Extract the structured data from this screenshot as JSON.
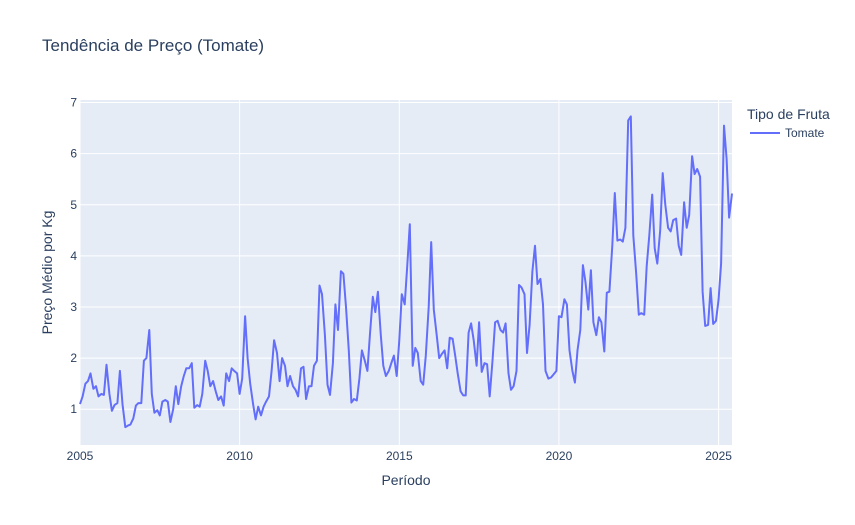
{
  "chart_data": {
    "type": "line",
    "title": "Tendência de Preço (Tomate)",
    "xlabel": "Período",
    "ylabel": "Preço Médio por Kg",
    "legend_title": "Tipo de Fruta",
    "legend_position": "top-right",
    "grid": true,
    "xlim": [
      2005,
      2025.42
    ],
    "ylim": [
      0.3,
      7.05
    ],
    "x_ticks": [
      2005,
      2010,
      2015,
      2020,
      2025
    ],
    "y_ticks": [
      1,
      2,
      3,
      4,
      5,
      6,
      7
    ],
    "series": [
      {
        "name": "Tomate",
        "color": "#636efa",
        "points": [
          [
            2005.0,
            1.1
          ],
          [
            2005.08,
            1.25
          ],
          [
            2005.17,
            1.5
          ],
          [
            2005.25,
            1.55
          ],
          [
            2005.33,
            1.7
          ],
          [
            2005.42,
            1.4
          ],
          [
            2005.5,
            1.45
          ],
          [
            2005.58,
            1.25
          ],
          [
            2005.67,
            1.3
          ],
          [
            2005.75,
            1.28
          ],
          [
            2005.83,
            1.87
          ],
          [
            2005.92,
            1.3
          ],
          [
            2006.0,
            0.97
          ],
          [
            2006.08,
            1.08
          ],
          [
            2006.17,
            1.12
          ],
          [
            2006.25,
            1.75
          ],
          [
            2006.33,
            1.1
          ],
          [
            2006.42,
            0.65
          ],
          [
            2006.5,
            0.68
          ],
          [
            2006.58,
            0.7
          ],
          [
            2006.67,
            0.82
          ],
          [
            2006.75,
            1.07
          ],
          [
            2006.83,
            1.12
          ],
          [
            2006.92,
            1.12
          ],
          [
            2007.0,
            1.95
          ],
          [
            2007.08,
            2.0
          ],
          [
            2007.17,
            2.55
          ],
          [
            2007.25,
            1.3
          ],
          [
            2007.33,
            0.93
          ],
          [
            2007.42,
            0.98
          ],
          [
            2007.5,
            0.88
          ],
          [
            2007.58,
            1.15
          ],
          [
            2007.67,
            1.18
          ],
          [
            2007.75,
            1.15
          ],
          [
            2007.83,
            0.75
          ],
          [
            2007.92,
            1.0
          ],
          [
            2008.0,
            1.45
          ],
          [
            2008.08,
            1.1
          ],
          [
            2008.17,
            1.45
          ],
          [
            2008.25,
            1.65
          ],
          [
            2008.33,
            1.8
          ],
          [
            2008.42,
            1.8
          ],
          [
            2008.5,
            1.9
          ],
          [
            2008.58,
            1.03
          ],
          [
            2008.67,
            1.08
          ],
          [
            2008.75,
            1.05
          ],
          [
            2008.83,
            1.3
          ],
          [
            2008.92,
            1.95
          ],
          [
            2009.0,
            1.75
          ],
          [
            2009.08,
            1.45
          ],
          [
            2009.17,
            1.55
          ],
          [
            2009.25,
            1.35
          ],
          [
            2009.33,
            1.18
          ],
          [
            2009.42,
            1.25
          ],
          [
            2009.5,
            1.07
          ],
          [
            2009.58,
            1.7
          ],
          [
            2009.67,
            1.55
          ],
          [
            2009.75,
            1.8
          ],
          [
            2009.83,
            1.75
          ],
          [
            2009.92,
            1.7
          ],
          [
            2010.0,
            1.3
          ],
          [
            2010.08,
            1.6
          ],
          [
            2010.17,
            2.82
          ],
          [
            2010.25,
            2.0
          ],
          [
            2010.33,
            1.5
          ],
          [
            2010.42,
            1.1
          ],
          [
            2010.5,
            0.8
          ],
          [
            2010.58,
            1.05
          ],
          [
            2010.67,
            0.88
          ],
          [
            2010.75,
            1.05
          ],
          [
            2010.83,
            1.15
          ],
          [
            2010.92,
            1.25
          ],
          [
            2011.0,
            1.75
          ],
          [
            2011.08,
            2.35
          ],
          [
            2011.17,
            2.1
          ],
          [
            2011.25,
            1.55
          ],
          [
            2011.33,
            2.0
          ],
          [
            2011.42,
            1.85
          ],
          [
            2011.5,
            1.45
          ],
          [
            2011.58,
            1.65
          ],
          [
            2011.67,
            1.45
          ],
          [
            2011.75,
            1.38
          ],
          [
            2011.83,
            1.25
          ],
          [
            2011.92,
            1.8
          ],
          [
            2012.0,
            1.83
          ],
          [
            2012.08,
            1.2
          ],
          [
            2012.17,
            1.45
          ],
          [
            2012.25,
            1.45
          ],
          [
            2012.33,
            1.85
          ],
          [
            2012.42,
            1.95
          ],
          [
            2012.5,
            3.42
          ],
          [
            2012.58,
            3.25
          ],
          [
            2012.67,
            2.45
          ],
          [
            2012.75,
            1.48
          ],
          [
            2012.83,
            1.28
          ],
          [
            2012.92,
            1.9
          ],
          [
            2013.0,
            3.05
          ],
          [
            2013.08,
            2.55
          ],
          [
            2013.17,
            3.7
          ],
          [
            2013.25,
            3.65
          ],
          [
            2013.33,
            3.0
          ],
          [
            2013.42,
            2.15
          ],
          [
            2013.5,
            1.13
          ],
          [
            2013.58,
            1.2
          ],
          [
            2013.67,
            1.17
          ],
          [
            2013.75,
            1.6
          ],
          [
            2013.83,
            2.15
          ],
          [
            2013.92,
            1.95
          ],
          [
            2014.0,
            1.75
          ],
          [
            2014.08,
            2.45
          ],
          [
            2014.17,
            3.2
          ],
          [
            2014.25,
            2.9
          ],
          [
            2014.33,
            3.3
          ],
          [
            2014.42,
            2.45
          ],
          [
            2014.5,
            1.85
          ],
          [
            2014.58,
            1.65
          ],
          [
            2014.67,
            1.75
          ],
          [
            2014.75,
            1.9
          ],
          [
            2014.83,
            2.05
          ],
          [
            2014.92,
            1.65
          ],
          [
            2015.0,
            2.35
          ],
          [
            2015.08,
            3.25
          ],
          [
            2015.17,
            3.05
          ],
          [
            2015.25,
            3.82
          ],
          [
            2015.33,
            4.62
          ],
          [
            2015.42,
            1.85
          ],
          [
            2015.5,
            2.2
          ],
          [
            2015.58,
            2.1
          ],
          [
            2015.67,
            1.55
          ],
          [
            2015.75,
            1.48
          ],
          [
            2015.83,
            2.05
          ],
          [
            2015.92,
            3.0
          ],
          [
            2016.0,
            4.27
          ],
          [
            2016.08,
            2.95
          ],
          [
            2016.17,
            2.45
          ],
          [
            2016.25,
            2.0
          ],
          [
            2016.33,
            2.08
          ],
          [
            2016.42,
            2.15
          ],
          [
            2016.5,
            1.8
          ],
          [
            2016.58,
            2.4
          ],
          [
            2016.67,
            2.38
          ],
          [
            2016.75,
            2.05
          ],
          [
            2016.83,
            1.7
          ],
          [
            2016.92,
            1.35
          ],
          [
            2017.0,
            1.27
          ],
          [
            2017.08,
            1.27
          ],
          [
            2017.17,
            2.5
          ],
          [
            2017.25,
            2.68
          ],
          [
            2017.33,
            2.35
          ],
          [
            2017.42,
            1.85
          ],
          [
            2017.5,
            2.7
          ],
          [
            2017.58,
            1.73
          ],
          [
            2017.67,
            1.9
          ],
          [
            2017.75,
            1.88
          ],
          [
            2017.83,
            1.25
          ],
          [
            2017.92,
            1.95
          ],
          [
            2018.0,
            2.7
          ],
          [
            2018.08,
            2.73
          ],
          [
            2018.17,
            2.55
          ],
          [
            2018.25,
            2.5
          ],
          [
            2018.33,
            2.68
          ],
          [
            2018.42,
            1.7
          ],
          [
            2018.5,
            1.38
          ],
          [
            2018.58,
            1.45
          ],
          [
            2018.67,
            1.75
          ],
          [
            2018.75,
            3.43
          ],
          [
            2018.83,
            3.38
          ],
          [
            2018.92,
            3.25
          ],
          [
            2019.0,
            2.1
          ],
          [
            2019.08,
            2.65
          ],
          [
            2019.17,
            3.7
          ],
          [
            2019.25,
            4.2
          ],
          [
            2019.33,
            3.45
          ],
          [
            2019.42,
            3.55
          ],
          [
            2019.5,
            3.05
          ],
          [
            2019.58,
            1.75
          ],
          [
            2019.67,
            1.6
          ],
          [
            2019.75,
            1.62
          ],
          [
            2019.83,
            1.68
          ],
          [
            2019.92,
            1.75
          ],
          [
            2020.0,
            2.82
          ],
          [
            2020.08,
            2.8
          ],
          [
            2020.17,
            3.15
          ],
          [
            2020.25,
            3.05
          ],
          [
            2020.33,
            2.15
          ],
          [
            2020.42,
            1.75
          ],
          [
            2020.5,
            1.52
          ],
          [
            2020.58,
            2.15
          ],
          [
            2020.67,
            2.55
          ],
          [
            2020.75,
            3.82
          ],
          [
            2020.83,
            3.5
          ],
          [
            2020.92,
            2.95
          ],
          [
            2021.0,
            3.72
          ],
          [
            2021.08,
            2.7
          ],
          [
            2021.17,
            2.45
          ],
          [
            2021.25,
            2.8
          ],
          [
            2021.33,
            2.7
          ],
          [
            2021.42,
            2.13
          ],
          [
            2021.5,
            3.28
          ],
          [
            2021.58,
            3.3
          ],
          [
            2021.67,
            4.2
          ],
          [
            2021.75,
            5.23
          ],
          [
            2021.83,
            4.3
          ],
          [
            2021.92,
            4.32
          ],
          [
            2022.0,
            4.28
          ],
          [
            2022.08,
            4.55
          ],
          [
            2022.17,
            6.65
          ],
          [
            2022.25,
            6.73
          ],
          [
            2022.33,
            4.4
          ],
          [
            2022.42,
            3.65
          ],
          [
            2022.5,
            2.85
          ],
          [
            2022.58,
            2.88
          ],
          [
            2022.67,
            2.85
          ],
          [
            2022.75,
            3.8
          ],
          [
            2022.83,
            4.4
          ],
          [
            2022.92,
            5.2
          ],
          [
            2023.0,
            4.15
          ],
          [
            2023.08,
            3.85
          ],
          [
            2023.17,
            4.5
          ],
          [
            2023.25,
            5.62
          ],
          [
            2023.33,
            5.0
          ],
          [
            2023.42,
            4.55
          ],
          [
            2023.5,
            4.48
          ],
          [
            2023.58,
            4.7
          ],
          [
            2023.67,
            4.73
          ],
          [
            2023.75,
            4.2
          ],
          [
            2023.83,
            4.02
          ],
          [
            2023.92,
            5.05
          ],
          [
            2024.0,
            4.55
          ],
          [
            2024.08,
            4.8
          ],
          [
            2024.17,
            5.95
          ],
          [
            2024.25,
            5.6
          ],
          [
            2024.33,
            5.7
          ],
          [
            2024.42,
            5.55
          ],
          [
            2024.5,
            3.3
          ],
          [
            2024.58,
            2.63
          ],
          [
            2024.67,
            2.65
          ],
          [
            2024.75,
            3.37
          ],
          [
            2024.83,
            2.67
          ],
          [
            2024.92,
            2.73
          ],
          [
            2025.0,
            3.15
          ],
          [
            2025.08,
            3.85
          ],
          [
            2025.17,
            6.55
          ],
          [
            2025.25,
            5.9
          ],
          [
            2025.33,
            4.75
          ],
          [
            2025.42,
            5.22
          ]
        ]
      }
    ]
  }
}
